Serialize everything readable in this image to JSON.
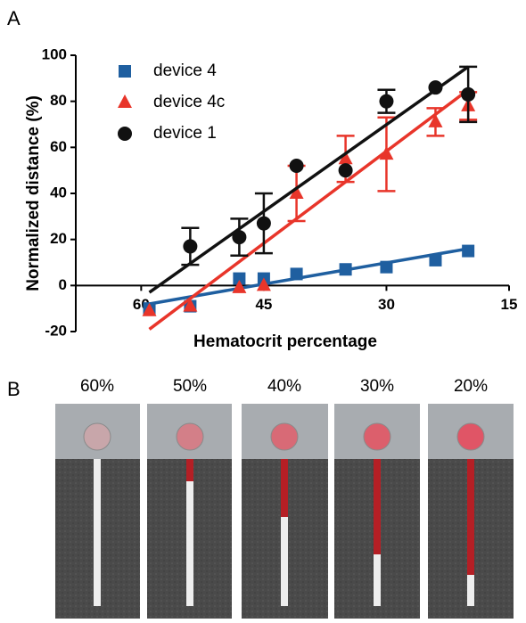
{
  "panel_labels": [
    "A",
    "B"
  ],
  "chart_data": {
    "type": "scatter",
    "xlabel": "Hematocrit percentage",
    "ylabel": "Normalized distance (%)",
    "xlim": [
      68,
      15
    ],
    "xticks": [
      60,
      45,
      30,
      15
    ],
    "ylim": [
      -20,
      100
    ],
    "yticks": [
      -20,
      0,
      20,
      40,
      60,
      80,
      100
    ],
    "legend": "upper left",
    "x": [
      59,
      54,
      48,
      45,
      41,
      35,
      30,
      24,
      20
    ],
    "series": [
      {
        "name": "device 4",
        "color": "#1f5fa0",
        "marker": "square",
        "values": [
          -10,
          -9,
          3,
          3,
          5,
          7,
          8,
          11,
          15
        ],
        "fit": {
          "x": [
            59,
            20
          ],
          "values": [
            -8,
            16
          ]
        }
      },
      {
        "name": "device 4c",
        "color": "#e8352a",
        "marker": "triangle",
        "values": [
          -11,
          -9,
          -1,
          0,
          40,
          55,
          57,
          71,
          78
        ],
        "errors": [
          null,
          null,
          null,
          null,
          12,
          10,
          16,
          6,
          6
        ],
        "fit": {
          "x": [
            59,
            20
          ],
          "values": [
            -19,
            85
          ]
        }
      },
      {
        "name": "device 1",
        "color": "#111111",
        "marker": "circle",
        "values": [
          null,
          17,
          21,
          27,
          52,
          50,
          80,
          86,
          83
        ],
        "errors": [
          null,
          8,
          8,
          13,
          null,
          null,
          5,
          null,
          12
        ],
        "fit": {
          "x": [
            59,
            20
          ],
          "values": [
            -3,
            95
          ]
        }
      }
    ]
  },
  "panel_b": {
    "labels": [
      "60%",
      "50%",
      "40%",
      "30%",
      "20%"
    ]
  }
}
